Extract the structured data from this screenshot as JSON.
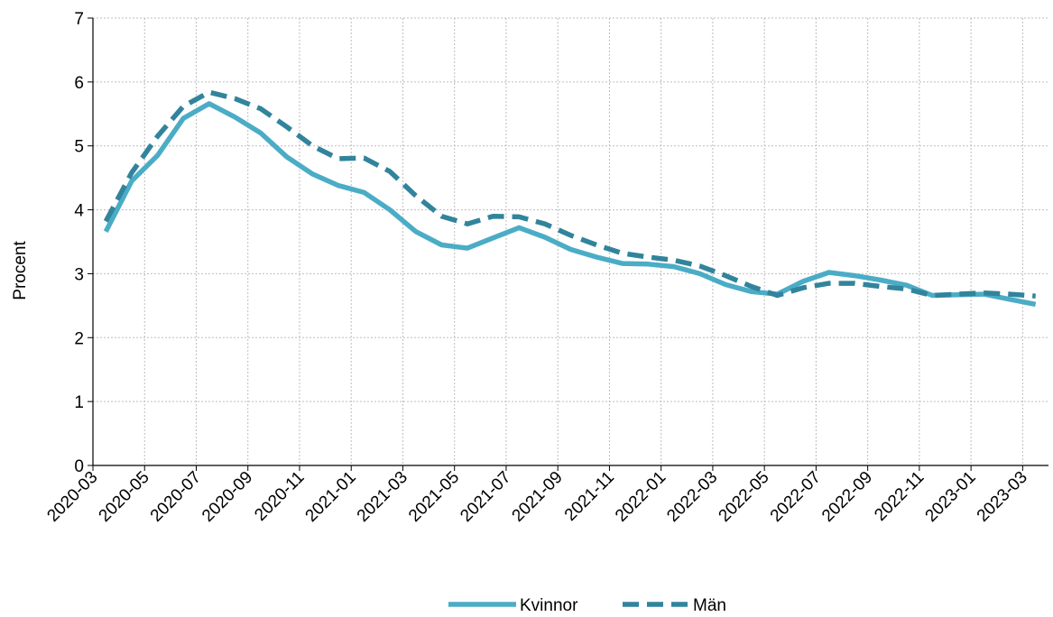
{
  "chart_data": {
    "type": "line",
    "ylabel": "Procent",
    "xlabel": "",
    "ylim": [
      0,
      7
    ],
    "yticks": [
      "0",
      "1",
      "2",
      "3",
      "4",
      "5",
      "6",
      "7"
    ],
    "x_tick_labels": [
      "2020-03",
      "2020-05",
      "2020-07",
      "2020-09",
      "2020-11",
      "2021-01",
      "2021-03",
      "2021-05",
      "2021-07",
      "2021-09",
      "2021-11",
      "2022-01",
      "2022-03",
      "2022-05",
      "2022-07",
      "2022-09",
      "2022-11",
      "2023-01",
      "2023-03"
    ],
    "x": [
      "2020-03",
      "2020-04",
      "2020-05",
      "2020-06",
      "2020-07",
      "2020-08",
      "2020-09",
      "2020-10",
      "2020-11",
      "2020-12",
      "2021-01",
      "2021-02",
      "2021-03",
      "2021-04",
      "2021-05",
      "2021-06",
      "2021-07",
      "2021-08",
      "2021-09",
      "2021-10",
      "2021-11",
      "2021-12",
      "2022-01",
      "2022-02",
      "2022-03",
      "2022-04",
      "2022-05",
      "2022-06",
      "2022-07",
      "2022-08",
      "2022-09",
      "2022-10",
      "2022-11",
      "2022-12",
      "2023-01",
      "2023-02",
      "2023-03"
    ],
    "series": [
      {
        "name": "Kvinnor",
        "color": "#4bacc6",
        "style": "solid",
        "values": [
          3.66,
          4.45,
          4.85,
          5.43,
          5.66,
          5.45,
          5.2,
          4.83,
          4.56,
          4.38,
          4.27,
          4.0,
          3.66,
          3.45,
          3.4,
          3.56,
          3.72,
          3.57,
          3.38,
          3.26,
          3.16,
          3.15,
          3.11,
          3.0,
          2.83,
          2.72,
          2.68,
          2.88,
          3.02,
          2.97,
          2.9,
          2.82,
          2.66,
          2.67,
          2.68,
          2.6,
          2.52
        ]
      },
      {
        "name": "Män",
        "color": "#31849b",
        "style": "dashed",
        "values": [
          3.82,
          4.58,
          5.15,
          5.62,
          5.84,
          5.74,
          5.58,
          5.3,
          5.0,
          4.8,
          4.81,
          4.6,
          4.22,
          3.9,
          3.78,
          3.9,
          3.89,
          3.78,
          3.6,
          3.45,
          3.32,
          3.26,
          3.21,
          3.12,
          2.97,
          2.8,
          2.66,
          2.78,
          2.85,
          2.85,
          2.8,
          2.76,
          2.66,
          2.68,
          2.7,
          2.68,
          2.65
        ]
      }
    ],
    "grid": true,
    "legend_position": "bottom-center"
  }
}
